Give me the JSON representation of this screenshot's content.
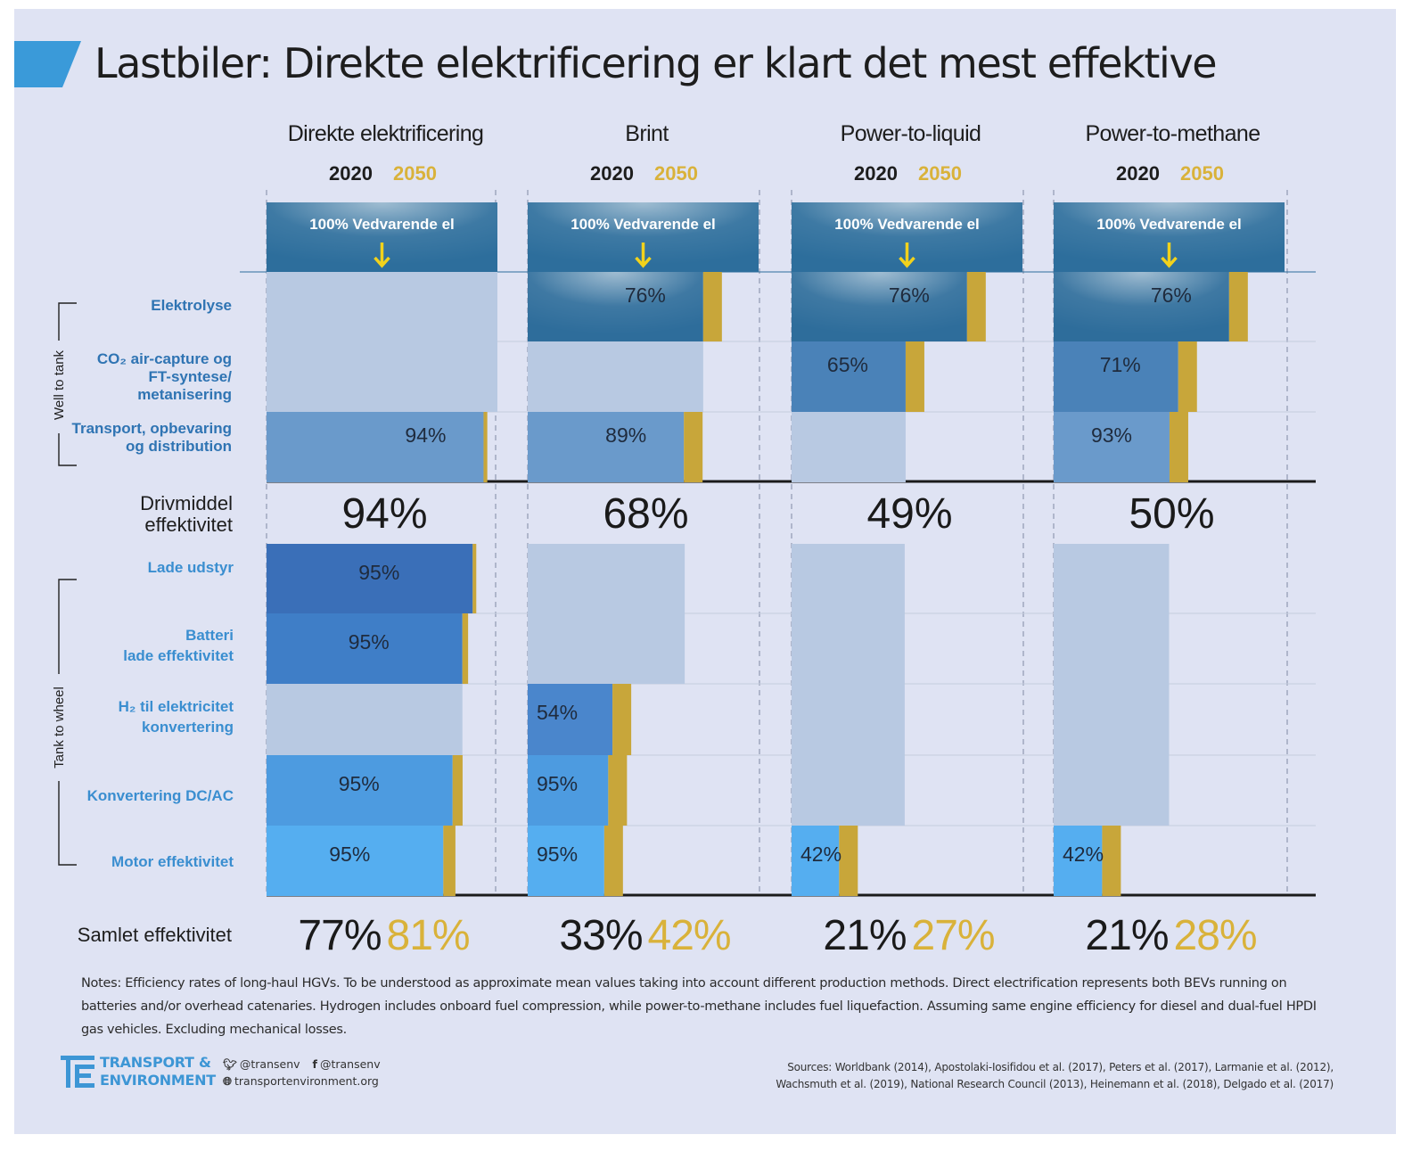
{
  "title": "Lastbiler: Direkte elektrificering er klart det mest effektive",
  "chart_data": {
    "type": "bar",
    "title": "Lastbiler: Direkte elektrificering er klart det mest effektive",
    "columns": [
      "Direkte elektrificering",
      "Brint",
      "Power-to-liquid",
      "Power-to-methane"
    ],
    "years": [
      "2020",
      "2050"
    ],
    "source_label": "100% Vedvarende el",
    "group_labels": [
      "Well to tank",
      "Tank to wheel"
    ],
    "well_to_tank_steps": [
      "Elektrolyse",
      "CO₂ air-capture og FT-syntese/ metanisering",
      "Transport, opbevaring og distribution"
    ],
    "fuel_efficiency_label": "Drivmiddel effektivitet",
    "tank_to_wheel_steps": [
      "Lade udstyr",
      "Batteri lade effektivitet",
      "H₂ til elektricitet konvertering",
      "Konvertering DC/AC",
      "Motor effektivitet"
    ],
    "total_label": "Samlet effektivitet",
    "step_efficiency": {
      "Direkte elektrificering": {
        "Elektrolyse": null,
        "CO2 air-capture og FT-syntese/ metanisering": null,
        "Transport, opbevaring og distribution": 94,
        "Lade udstyr": 95,
        "Batteri lade effektivitet": 95,
        "H2 til elektricitet konvertering": null,
        "Konvertering DC/AC": 95,
        "Motor effektivitet": 95
      },
      "Brint": {
        "Elektrolyse": 76,
        "CO2 air-capture og FT-syntese/ metanisering": null,
        "Transport, opbevaring og distribution": 89,
        "Lade udstyr": null,
        "Batteri lade effektivitet": null,
        "H2 til elektricitet konvertering": 54,
        "Konvertering DC/AC": 95,
        "Motor effektivitet": 95
      },
      "Power-to-liquid": {
        "Elektrolyse": 76,
        "CO2 air-capture og FT-syntese/ metanisering": 65,
        "Transport, opbevaring og distribution": null,
        "Lade udstyr": null,
        "Batteri lade effektivitet": null,
        "H2 til elektricitet konvertering": null,
        "Konvertering DC/AC": null,
        "Motor effektivitet": 42
      },
      "Power-to-methane": {
        "Elektrolyse": 76,
        "CO2 air-capture og FT-syntese/ metanisering": 71,
        "Transport, opbevaring og distribution": 93,
        "Lade udstyr": null,
        "Batteri lade effektivitet": null,
        "H2 til elektricitet konvertering": null,
        "Konvertering DC/AC": null,
        "Motor effektivitet": 42
      }
    },
    "fuel_efficiency": {
      "Direkte elektrificering": 94,
      "Brint": 68,
      "Power-to-liquid": 49,
      "Power-to-methane": 50
    },
    "series": [
      {
        "name": "2020",
        "values": [
          77,
          33,
          21,
          21
        ]
      },
      {
        "name": "2050",
        "values": [
          81,
          42,
          27,
          28
        ]
      }
    ],
    "display": {
      "fuel_efficiency": [
        "94%",
        "68%",
        "49%",
        "50%"
      ],
      "total_2020": [
        "77%",
        "33%",
        "21%",
        "21%"
      ],
      "total_2050": [
        "81%",
        "42%",
        "27%",
        "28%"
      ]
    },
    "colors": {
      "bar_2050": "#c8a63a",
      "header_box": "#2d6e9c",
      "year_2050": "#d9b23a",
      "ghost_bar": "#b8c9e2",
      "well_to_tank_label": "#2f74b3",
      "tank_to_wheel_label": "#3a8ed0"
    }
  },
  "notes": "Notes: Efficiency rates of long-haul HGVs. To be understood as approximate mean values taking into account different production methods. Direct electrification represents both BEVs running on batteries and/or overhead catenaries. Hydrogen includes onboard fuel compression, while power-to-methane includes fuel liquefaction. Assuming same engine efficiency for diesel and dual-fuel HPDI gas vehicles. Excluding mechanical losses.",
  "sources_line1": "Sources: Worldbank (2014), Apostolaki-Iosifidou et al. (2017), Peters et al. (2017), Larmanie et al. (2012),",
  "sources_line2": "Wachsmuth et al. (2019), National Research Council (2013), Heinemann et al. (2018), Delgado et al. (2017)",
  "footer": {
    "org_line1": "TRANSPORT &",
    "org_line2": "ENVIRONMENT",
    "twitter": "@transenv",
    "facebook": "@transenv",
    "website": "transportenvironment.org"
  }
}
